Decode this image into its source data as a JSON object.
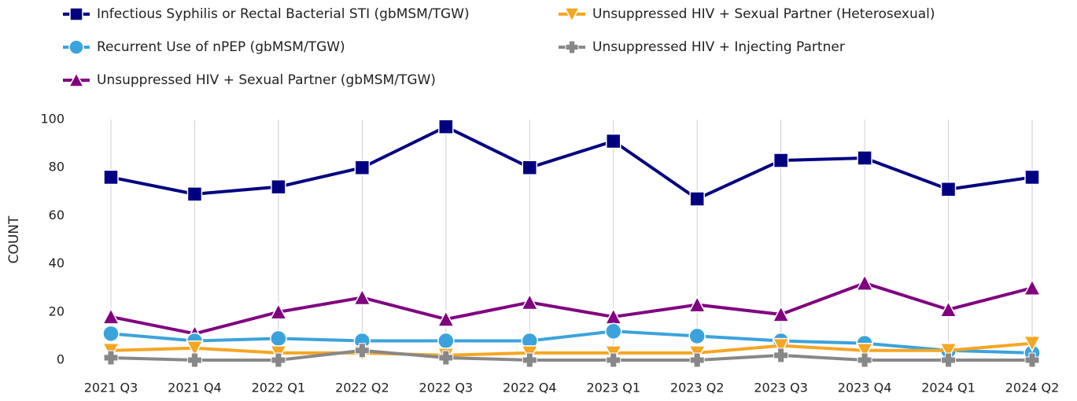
{
  "chart_data": {
    "type": "line",
    "y_label": "COUNT",
    "categories": [
      "2021 Q3",
      "2021 Q4",
      "2022 Q1",
      "2022 Q2",
      "2022 Q3",
      "2022 Q4",
      "2023 Q1",
      "2023 Q2",
      "2023 Q3",
      "2023 Q4",
      "2024 Q1",
      "2024 Q2"
    ],
    "series": [
      {
        "name": "Infectious Syphilis or Rectal Bacterial STI (gbMSM/TGW)",
        "color": "#000080",
        "marker": "square",
        "values": [
          76,
          69,
          72,
          80,
          97,
          80,
          91,
          67,
          83,
          84,
          71,
          76
        ]
      },
      {
        "name": "Unsuppressed HIV + Sexual Partner (Heterosexual)",
        "color": "#f5a623",
        "marker": "triangle-down",
        "values": [
          4,
          5,
          3,
          3,
          2,
          3,
          3,
          3,
          6,
          4,
          4,
          7
        ]
      },
      {
        "name": "Recurrent Use of nPEP (gbMSM/TGW)",
        "color": "#3ba3dc",
        "marker": "circle",
        "values": [
          11,
          8,
          9,
          8,
          8,
          8,
          12,
          10,
          8,
          7,
          4,
          3
        ]
      },
      {
        "name": "Unsuppressed HIV + Injecting Partner",
        "color": "#888888",
        "marker": "plus",
        "values": [
          1,
          0,
          0,
          4,
          1,
          0,
          0,
          0,
          2,
          0,
          0,
          0
        ]
      },
      {
        "name": "Unsuppressed HIV + Sexual Partner (gbMSM/TGW)",
        "color": "#800080",
        "marker": "triangle-up",
        "values": [
          18,
          11,
          20,
          26,
          17,
          24,
          18,
          23,
          19,
          32,
          21,
          30
        ]
      }
    ],
    "ylim": [
      0,
      100
    ],
    "yticks": [
      0,
      20,
      40,
      60,
      80,
      100
    ],
    "grid": true
  }
}
